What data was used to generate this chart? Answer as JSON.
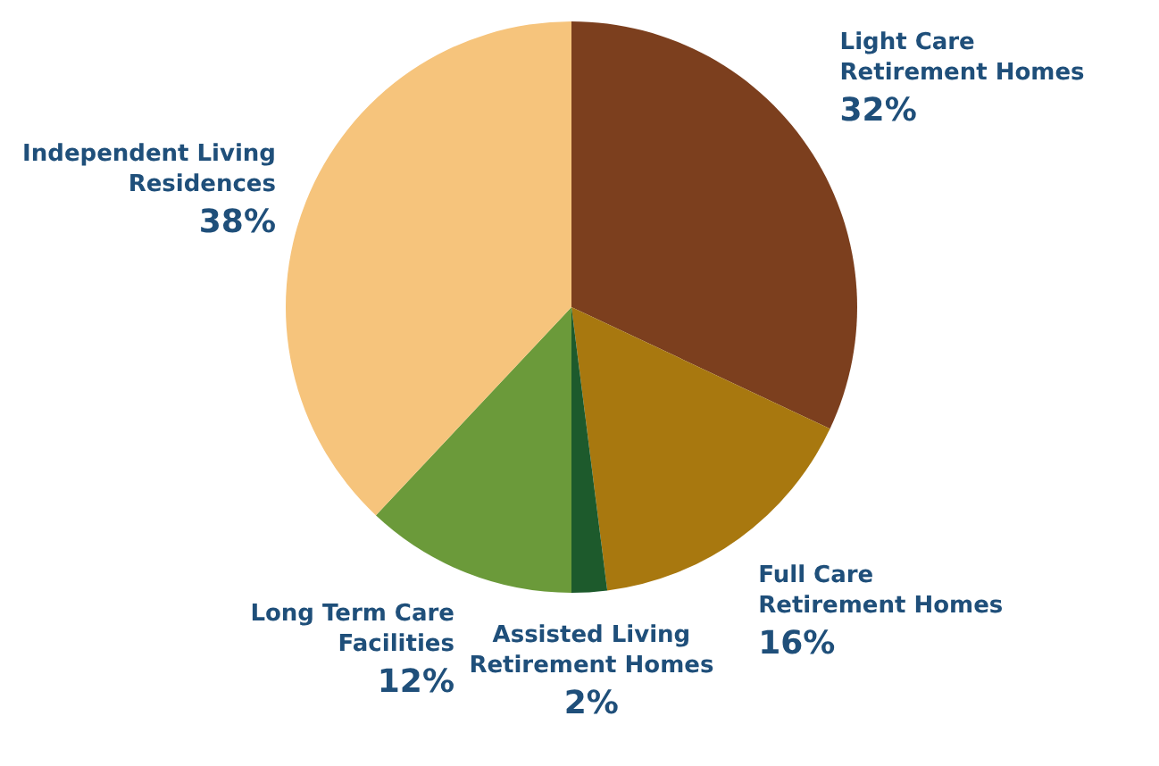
{
  "chart_data": {
    "type": "pie",
    "categories": [
      "Light Care Retirement Homes",
      "Full Care Retirement Homes",
      "Assisted Living Retirement Homes",
      "Long Term Care Facilities",
      "Independent Living Residences"
    ],
    "values": [
      32,
      16,
      2,
      12,
      38
    ],
    "value_labels": [
      "32%",
      "16%",
      "2%",
      "12%",
      "38%"
    ],
    "colors": [
      "#7c3f1e",
      "#a8780f",
      "#1d5a2c",
      "#6b9a3a",
      "#f6c47c"
    ]
  }
}
